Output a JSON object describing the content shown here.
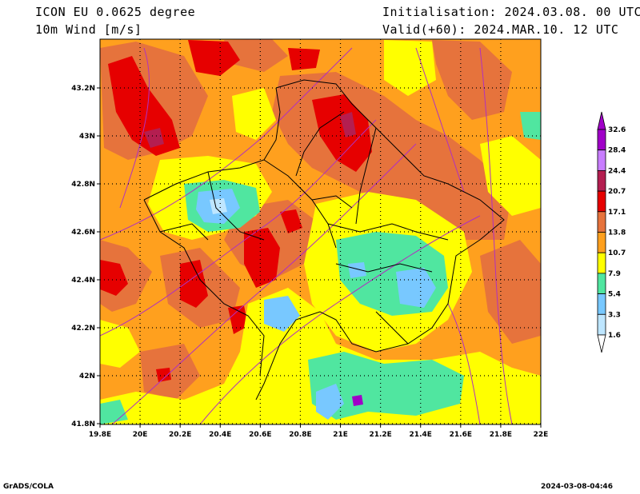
{
  "header": {
    "model": "ICON EU 0.0625 degree",
    "variable": "10m Wind [m/s]",
    "init": "Initialisation: 2024.03.08. 00 UTC",
    "valid": "Valid(+60): 2024.MAR.10. 12 UTC"
  },
  "footer": {
    "left": "GrADS/COLA",
    "right": "2024-03-08-04:46"
  },
  "map": {
    "lon_ticks": [
      "19.8E",
      "20E",
      "20.2E",
      "20.4E",
      "20.6E",
      "20.8E",
      "21E",
      "21.2E",
      "21.4E",
      "21.6E",
      "21.8E",
      "22E"
    ],
    "lat_ticks": [
      "43.2N",
      "43N",
      "42.8N",
      "42.6N",
      "42.4N",
      "42.2N",
      "42N",
      "41.8N"
    ],
    "grid": true
  },
  "colorbar": {
    "levels": [
      "32.6",
      "28.4",
      "24.4",
      "20.7",
      "17.1",
      "13.8",
      "10.7",
      "7.9",
      "5.4",
      "3.3",
      "1.6"
    ],
    "colors": [
      "#a000c8",
      "#c87dff",
      "#b41e50",
      "#e60000",
      "#e6733c",
      "#ffa01e",
      "#ffff00",
      "#50e6a0",
      "#78c8ff",
      "#bee6ff",
      "#ffffff"
    ]
  },
  "fill_colors": {
    "orange": "#ffa01e",
    "brown_orange": "#e6733c",
    "red": "#e60000",
    "yellow": "#ffff00",
    "green": "#50e6a0",
    "lightblue": "#78c8ff",
    "paleblue": "#bee6ff",
    "crimson": "#b41e50"
  }
}
